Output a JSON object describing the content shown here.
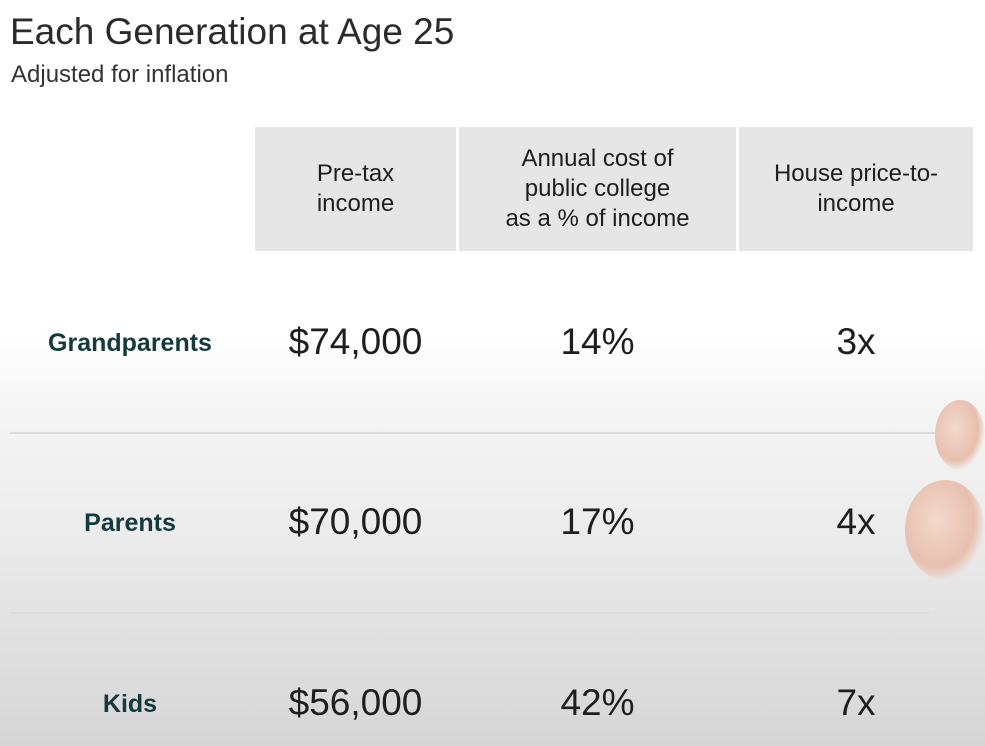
{
  "title": "Each Generation at Age 25",
  "subtitle": "Adjusted for inflation",
  "chart_data": {
    "type": "table",
    "title": "Each Generation at Age 25",
    "subtitle": "Adjusted for inflation",
    "columns": [
      "Pre-tax\nincome",
      "Annual cost of\npublic college\nas a % of income",
      "House price-to-\nincome"
    ],
    "rows": [
      {
        "label": "Grandparents",
        "income": "$74,000",
        "college": "14%",
        "house": "3x"
      },
      {
        "label": "Parents",
        "income": "$70,000",
        "college": "17%",
        "house": "4x"
      },
      {
        "label": "Kids",
        "income": "$56,000",
        "college": "42%",
        "house": "7x"
      }
    ],
    "values": {
      "income_usd": [
        74000,
        70000,
        56000
      ],
      "college_pct_of_income": [
        14,
        17,
        42
      ],
      "house_price_to_income": [
        3,
        4,
        7
      ]
    }
  },
  "colors": {
    "header_bg": "#e6e6e6",
    "row_label": "#143a3c",
    "text": "#1e1e1e"
  }
}
